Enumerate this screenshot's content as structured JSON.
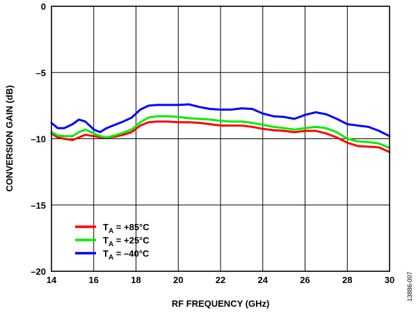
{
  "chart_data": {
    "type": "line",
    "xlabel": "RF FREQUENCY (GHz)",
    "ylabel": "CONVERSION GAIN (dB)",
    "xlim": [
      14,
      30
    ],
    "ylim": [
      -20,
      0
    ],
    "x_ticks": [
      "14",
      "16",
      "18",
      "20",
      "22",
      "24",
      "26",
      "28",
      "30"
    ],
    "y_ticks": [
      "0",
      "–5",
      "–10",
      "–15",
      "–20"
    ],
    "grid": true,
    "legend_position": "bottom-left",
    "figure_id": "13886-007",
    "series": [
      {
        "name": "+85°C",
        "legend_main": "T",
        "legend_sub": "A",
        "legend_rest": " = +85°C",
        "color": "#ff0000",
        "x": [
          14,
          14.3,
          14.6,
          15,
          15.3,
          15.6,
          16,
          16.3,
          16.6,
          17,
          17.4,
          17.8,
          18.2,
          18.6,
          19,
          19.5,
          20,
          20.5,
          21,
          21.5,
          22,
          22.5,
          23,
          23.5,
          24,
          24.5,
          25,
          25.5,
          26,
          26.5,
          27,
          27.5,
          28,
          28.5,
          29,
          29.5,
          30
        ],
        "y": [
          -9.6,
          -9.9,
          -10.0,
          -10.1,
          -9.9,
          -9.7,
          -9.8,
          -9.9,
          -9.9,
          -9.85,
          -9.7,
          -9.5,
          -9.0,
          -8.75,
          -8.7,
          -8.7,
          -8.75,
          -8.75,
          -8.8,
          -8.9,
          -9.0,
          -9.0,
          -9.0,
          -9.1,
          -9.25,
          -9.35,
          -9.4,
          -9.5,
          -9.4,
          -9.4,
          -9.6,
          -9.9,
          -10.3,
          -10.55,
          -10.6,
          -10.65,
          -11.0
        ]
      },
      {
        "name": "+25°C",
        "legend_main": "T",
        "legend_sub": "A",
        "legend_rest": " = +25°C",
        "color": "#00ee00",
        "x": [
          14,
          14.3,
          14.6,
          15,
          15.3,
          15.6,
          16,
          16.3,
          16.6,
          17,
          17.4,
          17.8,
          18.2,
          18.6,
          19,
          19.5,
          20,
          20.5,
          21,
          21.5,
          22,
          22.5,
          23,
          23.5,
          24,
          24.5,
          25,
          25.5,
          26,
          26.5,
          27,
          27.5,
          28,
          28.5,
          29,
          29.5,
          30
        ],
        "y": [
          -9.5,
          -9.75,
          -9.8,
          -9.8,
          -9.5,
          -9.3,
          -9.6,
          -9.8,
          -9.9,
          -9.75,
          -9.55,
          -9.3,
          -8.75,
          -8.4,
          -8.3,
          -8.3,
          -8.35,
          -8.45,
          -8.5,
          -8.55,
          -8.65,
          -8.7,
          -8.7,
          -8.8,
          -8.95,
          -9.1,
          -9.2,
          -9.3,
          -9.2,
          -9.1,
          -9.2,
          -9.5,
          -10.0,
          -10.2,
          -10.25,
          -10.35,
          -10.7
        ]
      },
      {
        "name": "–40°C",
        "legend_main": "T",
        "legend_sub": "A",
        "legend_rest": " = –40°C",
        "color": "#0000ff",
        "x": [
          14,
          14.3,
          14.6,
          15,
          15.3,
          15.6,
          16,
          16.3,
          16.6,
          17,
          17.4,
          17.8,
          18.2,
          18.6,
          19,
          19.5,
          20,
          20.5,
          21,
          21.5,
          22,
          22.5,
          23,
          23.5,
          24,
          24.5,
          25,
          25.5,
          26,
          26.5,
          27,
          27.5,
          28,
          28.5,
          29,
          29.5,
          30
        ],
        "y": [
          -8.8,
          -9.2,
          -9.2,
          -8.9,
          -8.55,
          -8.7,
          -9.3,
          -9.5,
          -9.2,
          -8.95,
          -8.7,
          -8.4,
          -7.8,
          -7.5,
          -7.45,
          -7.45,
          -7.45,
          -7.4,
          -7.6,
          -7.75,
          -7.8,
          -7.8,
          -7.7,
          -7.75,
          -8.1,
          -8.3,
          -8.35,
          -8.5,
          -8.2,
          -8.0,
          -8.15,
          -8.5,
          -8.9,
          -9.0,
          -9.1,
          -9.4,
          -9.8
        ]
      }
    ]
  }
}
